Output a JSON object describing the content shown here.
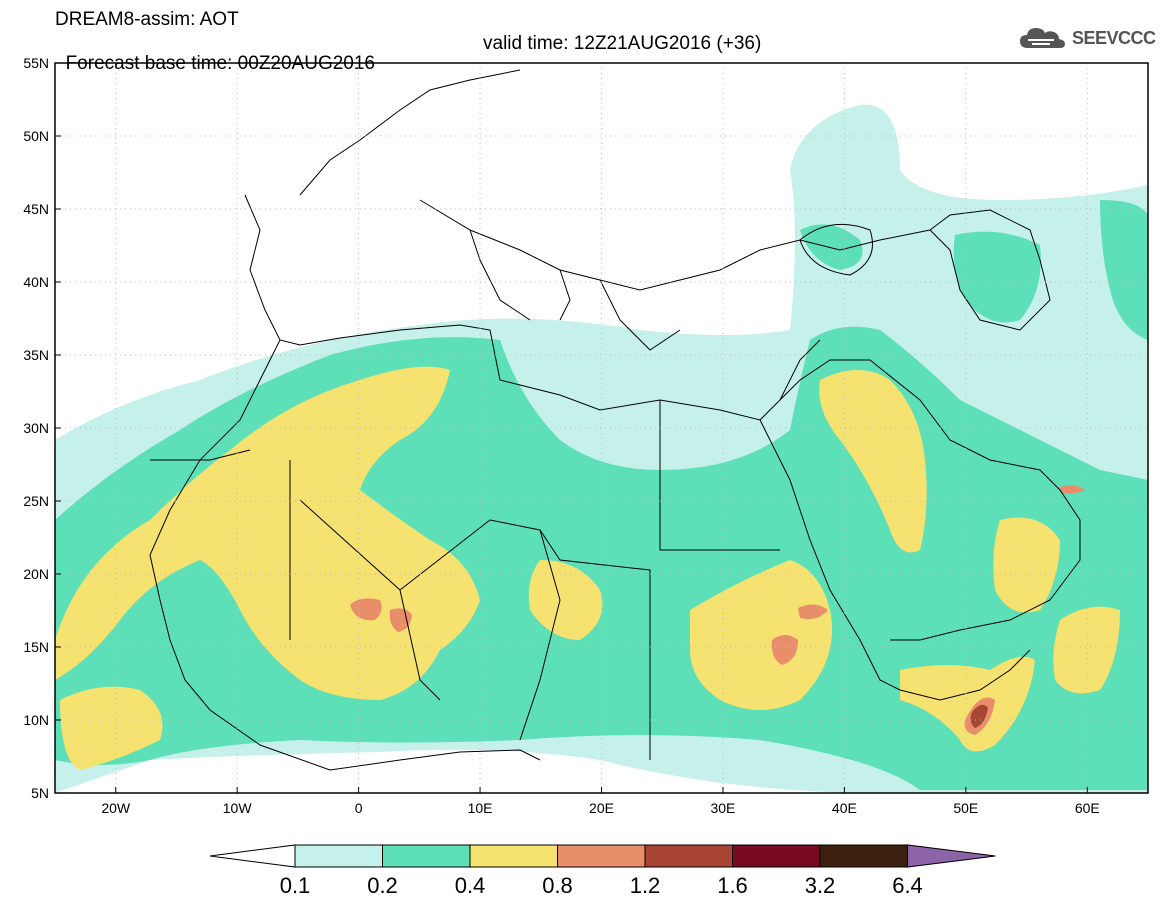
{
  "header": {
    "line1": "DREAM8-assim: AOT",
    "line2_left": "Forecast base time: 00Z20AUG2016",
    "line2_right": "valid time: 12Z21AUG2016 (+36)"
  },
  "logo": {
    "text": "SEEVCCC",
    "icon": "cloud-icon"
  },
  "map": {
    "lon_range": [
      -25,
      65
    ],
    "lat_range": [
      5,
      55
    ],
    "lat_labels": [
      "55N",
      "50N",
      "45N",
      "40N",
      "35N",
      "30N",
      "25N",
      "20N",
      "15N",
      "10N",
      "5N"
    ],
    "lon_labels": [
      "20W",
      "10W",
      "0",
      "10E",
      "20E",
      "30E",
      "40E",
      "50E",
      "60E"
    ],
    "gridlines": "dotted"
  },
  "colorbar": {
    "levels": [
      "0.1",
      "0.2",
      "0.4",
      "0.8",
      "1.2",
      "1.6",
      "3.2",
      "6.4"
    ],
    "colors": [
      "#c6f0ea",
      "#5ddfb8",
      "#f5e270",
      "#e88e6a",
      "#a84535",
      "#770a22",
      "#3b2010",
      "#8d64a8"
    ],
    "under_color": "#ffffff"
  }
}
